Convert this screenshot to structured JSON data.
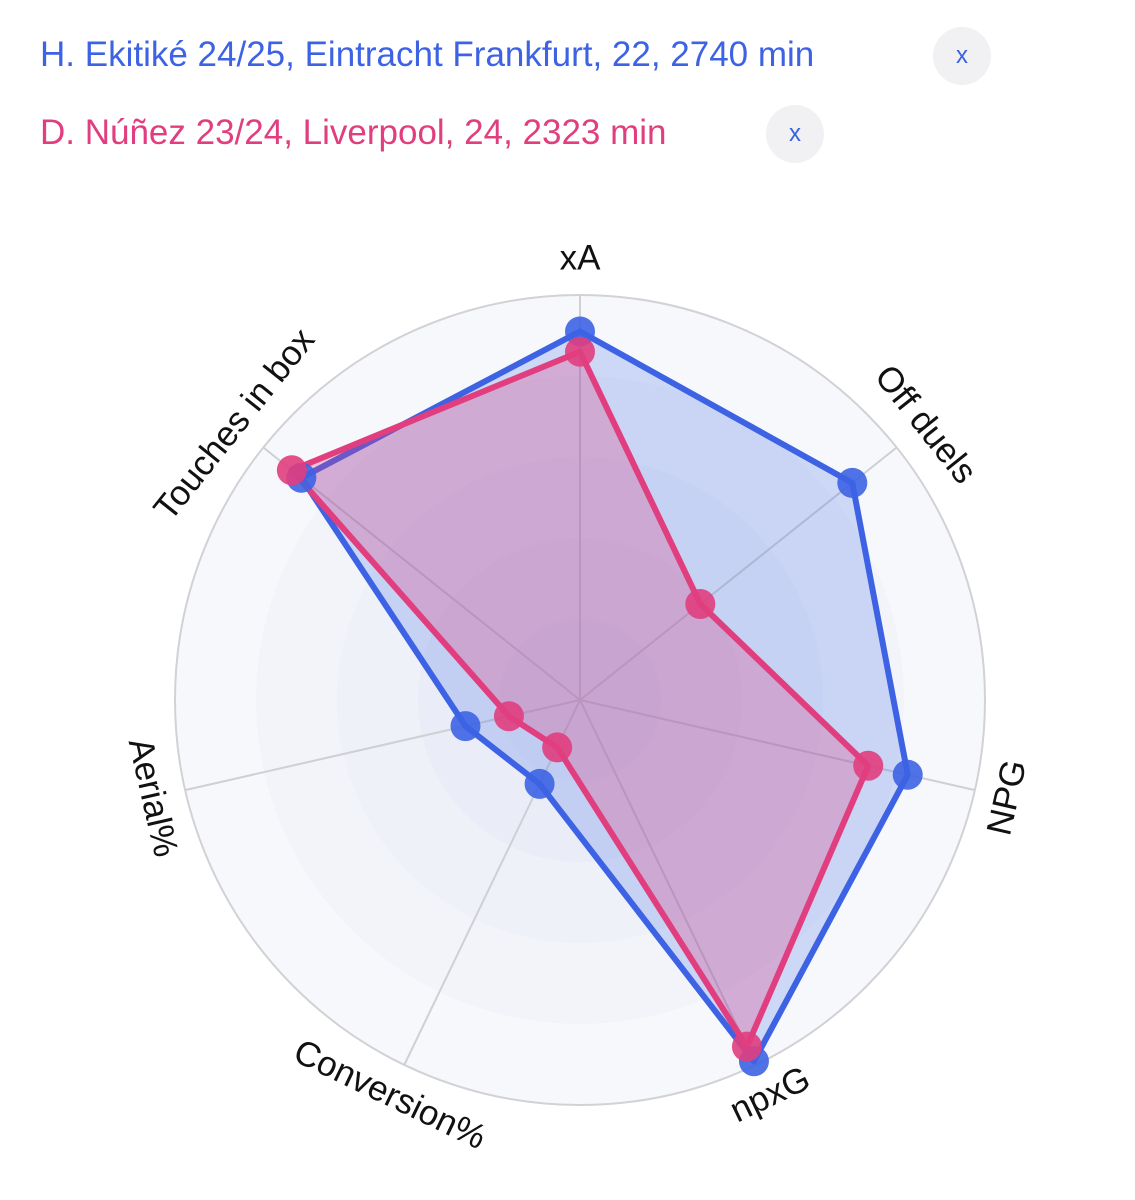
{
  "legend": [
    {
      "text": "H. Ekitiké 24/25, Eintracht Frankfurt, 22, 2740 min",
      "color": "#3d63e4",
      "close": "x"
    },
    {
      "text": "D. Núñez 23/24, Liverpool, 24, 2323 min",
      "color": "#e03e7e",
      "close": "x"
    }
  ],
  "chart_data": {
    "type": "radar",
    "axes": [
      "xA",
      "Off duels",
      "NPG",
      "npxG",
      "Conversion%",
      "Aerial%",
      "Touches in box"
    ],
    "range": [
      0,
      100
    ],
    "series": [
      {
        "name": "H. Ekitiké 24/25, Eintracht Frankfurt, 22, 2740 min",
        "color": "#3d63e4",
        "values": [
          91,
          86,
          83,
          99,
          23,
          29,
          88
        ]
      },
      {
        "name": "D. Núñez 23/24, Liverpool, 24, 2323 min",
        "color": "#e03e7e",
        "values": [
          86,
          38,
          73,
          95,
          13,
          18,
          91
        ]
      }
    ]
  }
}
